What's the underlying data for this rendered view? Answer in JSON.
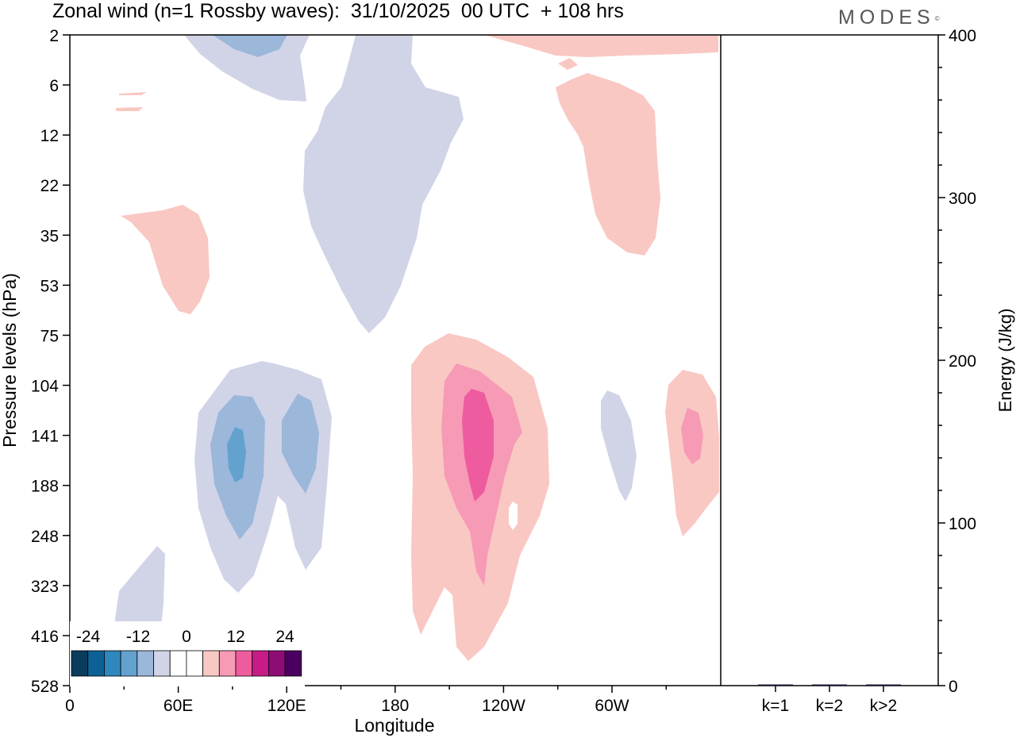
{
  "title": "Zonal wind (n=1 Rossby waves):  31/10/2025  00 UTC  + 108 hrs",
  "brand": "MODES",
  "brand_mark": "©",
  "chart_data": [
    {
      "type": "heatmap",
      "title": "Zonal wind (n=1 Rossby waves):  31/10/2025  00 UTC  + 108 hrs",
      "xlabel": "Longitude",
      "ylabel": "Pressure levels (hPa)",
      "x_ticks": [
        "0",
        "60E",
        "120E",
        "180",
        "120W",
        "60W"
      ],
      "y_ticks": [
        "2",
        "6",
        "12",
        "22",
        "35",
        "53",
        "75",
        "104",
        "141",
        "188",
        "248",
        "323",
        "416",
        "528"
      ],
      "colorbar": {
        "labels": [
          "-24",
          "-12",
          "0",
          "12",
          "24"
        ],
        "colors": [
          "#0b3c5c",
          "#0e6196",
          "#2f87bd",
          "#63a2cf",
          "#9bb7da",
          "#d1d4e7",
          "#ffffff",
          "#ffffff",
          "#f9c8c3",
          "#f79ab6",
          "#ef5b9f",
          "#c71b88",
          "#8d0c76",
          "#4b0061"
        ]
      },
      "legend": "bottom-left"
    },
    {
      "type": "bar",
      "ylabel": "Energy (J/kg)",
      "ylim": [
        0,
        400
      ],
      "y_ticks": [
        "0",
        "100",
        "200",
        "300",
        "400"
      ],
      "categories": [
        "k=1",
        "k=2",
        "k>2"
      ],
      "values": [
        0.4,
        0.6,
        0.3
      ],
      "bar_color": "#1a1a3a"
    }
  ]
}
